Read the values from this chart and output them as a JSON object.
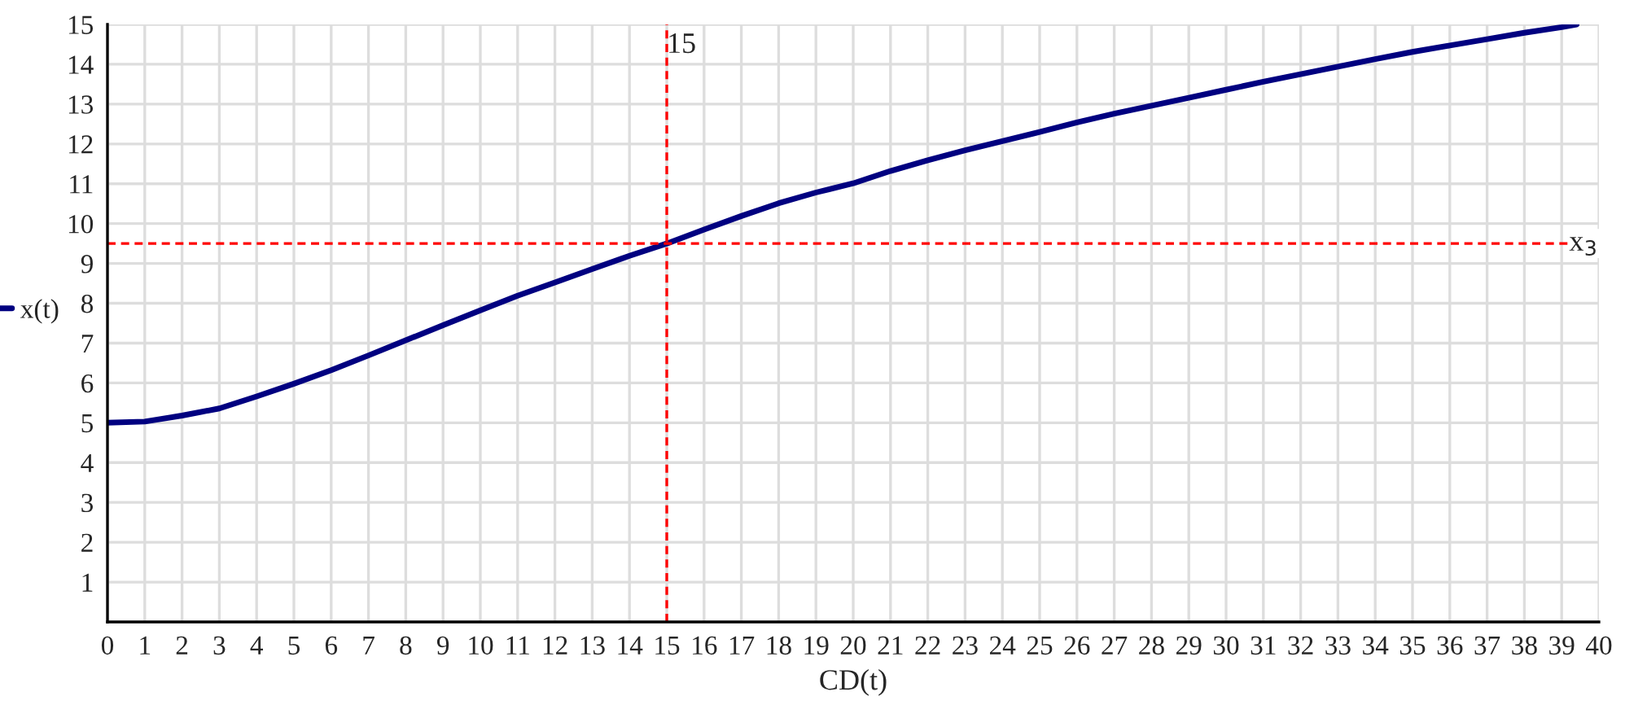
{
  "chart_data": {
    "type": "line",
    "xlabel": "CD(t)",
    "series": [
      {
        "name": "x(t)",
        "color": "#000080",
        "x": [
          0,
          1,
          2,
          3,
          4,
          5,
          6,
          7,
          8,
          9,
          10,
          11,
          12,
          13,
          14,
          15,
          16,
          17,
          18,
          19,
          20,
          21,
          22,
          23,
          24,
          25,
          26,
          27,
          28,
          29,
          30,
          31,
          32,
          33,
          34,
          35,
          36,
          37,
          38,
          39,
          39.4
        ],
        "values": [
          5.0,
          5.03,
          5.18,
          5.36,
          5.66,
          5.98,
          6.32,
          6.69,
          7.07,
          7.45,
          7.82,
          8.19,
          8.52,
          8.86,
          9.19,
          9.5,
          9.85,
          10.19,
          10.51,
          10.78,
          11.01,
          11.32,
          11.59,
          11.84,
          12.07,
          12.3,
          12.54,
          12.76,
          12.96,
          13.16,
          13.36,
          13.56,
          13.75,
          13.94,
          14.13,
          14.31,
          14.47,
          14.63,
          14.79,
          14.93,
          15.0
        ]
      }
    ],
    "ref_lines": [
      {
        "axis": "x",
        "value": 15,
        "label": "15",
        "color": "#ff0000",
        "line_style": "dashed"
      },
      {
        "axis": "y",
        "value": 9.5,
        "label": "x$_{3}$",
        "color": "#ff0000",
        "line_style": "dashed"
      }
    ],
    "xlim": [
      0,
      40
    ],
    "ylim": [
      0,
      15
    ],
    "xticks": [
      0,
      1,
      2,
      3,
      4,
      5,
      6,
      7,
      8,
      9,
      10,
      11,
      12,
      13,
      14,
      15,
      16,
      17,
      18,
      19,
      20,
      21,
      22,
      23,
      24,
      25,
      26,
      27,
      28,
      29,
      30,
      31,
      32,
      33,
      34,
      35,
      36,
      37,
      38,
      39,
      40
    ],
    "yticks": [
      {
        "value": 0,
        "label": null
      },
      1,
      2,
      3,
      4,
      5,
      6,
      7,
      8,
      9,
      10,
      11,
      12,
      13,
      14,
      15
    ],
    "grid": true,
    "legend": "left",
    "marker": "none",
    "line_style": "solid"
  }
}
